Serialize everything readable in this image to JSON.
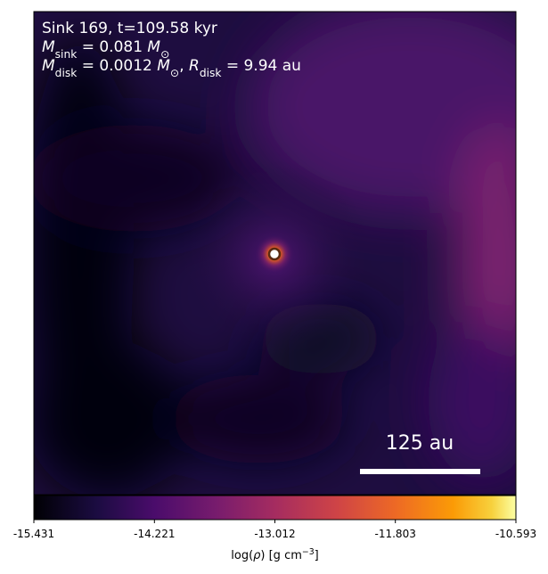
{
  "chart_data": {
    "type": "heatmap",
    "title_lines": [
      [
        {
          "text": "Sink 169, t=109.58 kyr"
        }
      ],
      [
        {
          "text": "M",
          "italic": true
        },
        {
          "text": "sink",
          "sub": true
        },
        {
          "text": " = 0.081 "
        },
        {
          "text": "M",
          "italic": true
        },
        {
          "text": "⊙",
          "sub": true
        }
      ],
      [
        {
          "text": "M",
          "italic": true
        },
        {
          "text": "disk",
          "sub": true
        },
        {
          "text": " = 0.0012 "
        },
        {
          "text": "M",
          "italic": true
        },
        {
          "text": "⊙",
          "sub": true
        },
        {
          "text": ", "
        },
        {
          "text": "R",
          "italic": true
        },
        {
          "text": "disk",
          "sub": true
        },
        {
          "text": " = 9.94 au"
        }
      ]
    ],
    "scale_bar_label": "125 au",
    "colorbar": {
      "label": [
        {
          "text": "log("
        },
        {
          "text": "ρ",
          "italic": true
        },
        {
          "text": ") [g cm"
        },
        {
          "text": "−3",
          "sup": true
        },
        {
          "text": "]"
        }
      ],
      "clim": [
        -15.431,
        -10.593
      ],
      "ticks": [
        -15.431,
        -14.221,
        -13.012,
        -11.803,
        -10.593
      ]
    }
  }
}
